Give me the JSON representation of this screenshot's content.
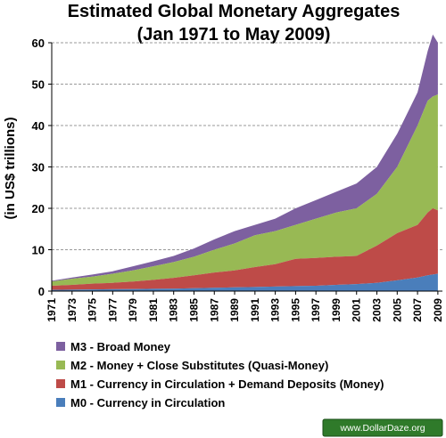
{
  "chart_data": {
    "type": "area",
    "stacked": true,
    "title": "Estimated Global Monetary Aggregates",
    "subtitle": "(Jan 1971 to May 2009)",
    "ylabel": "(in US$ trillions)",
    "xlabel": "",
    "ylim": [
      0,
      60
    ],
    "yticks": [
      "0",
      "10",
      "20",
      "30",
      "40",
      "50",
      "60"
    ],
    "xticks": [
      "1971",
      "1973",
      "1975",
      "1977",
      "1979",
      "1981",
      "1983",
      "1985",
      "1987",
      "1989",
      "1991",
      "1993",
      "1995",
      "1997",
      "1999",
      "2001",
      "2003",
      "2005",
      "2007",
      "2009"
    ],
    "grid": "horizontal dashed",
    "legend_position": "bottom",
    "x": [
      1971,
      1973,
      1975,
      1977,
      1979,
      1981,
      1983,
      1985,
      1987,
      1989,
      1991,
      1993,
      1995,
      1997,
      1999,
      2001,
      2003,
      2005,
      2007,
      2008,
      2008.5,
      2009
    ],
    "series": [
      {
        "name": "M0 - Currency in Circulation",
        "color": "#4a7ebb",
        "values": [
          0.3,
          0.35,
          0.4,
          0.45,
          0.5,
          0.55,
          0.6,
          0.7,
          0.8,
          0.9,
          1.0,
          1.1,
          1.2,
          1.3,
          1.5,
          1.7,
          2.0,
          2.6,
          3.3,
          3.8,
          4.0,
          4.2
        ]
      },
      {
        "name": "M1 - Currency in Circulation + Demand Deposits (Money)",
        "color": "#be4b48",
        "values": [
          1.3,
          1.5,
          1.8,
          2.0,
          2.3,
          2.7,
          3.2,
          3.8,
          4.5,
          5.0,
          5.8,
          6.5,
          7.8,
          8.0,
          8.3,
          8.5,
          11.0,
          14.0,
          16.0,
          19.0,
          20.0,
          19.5
        ]
      },
      {
        "name": "M2 - Money + Close Substitutes (Quasi-Money)",
        "color": "#98b954",
        "values": [
          2.3,
          3.0,
          3.5,
          4.2,
          5.0,
          6.0,
          7.0,
          8.3,
          10.0,
          11.5,
          13.5,
          14.5,
          16.0,
          17.5,
          19.0,
          20.0,
          23.5,
          30.0,
          40.0,
          46.0,
          47.0,
          47.5
        ]
      },
      {
        "name": "M3 - Broad Money",
        "color": "#7d60a0",
        "values": [
          2.5,
          3.3,
          4.0,
          4.8,
          6.0,
          7.2,
          8.5,
          10.3,
          12.5,
          14.5,
          16.0,
          17.5,
          20.0,
          22.0,
          24.0,
          26.0,
          30.0,
          38.0,
          48.0,
          58.0,
          62.0,
          60.0
        ]
      }
    ]
  },
  "watermark": "www.DollarDaze.org"
}
